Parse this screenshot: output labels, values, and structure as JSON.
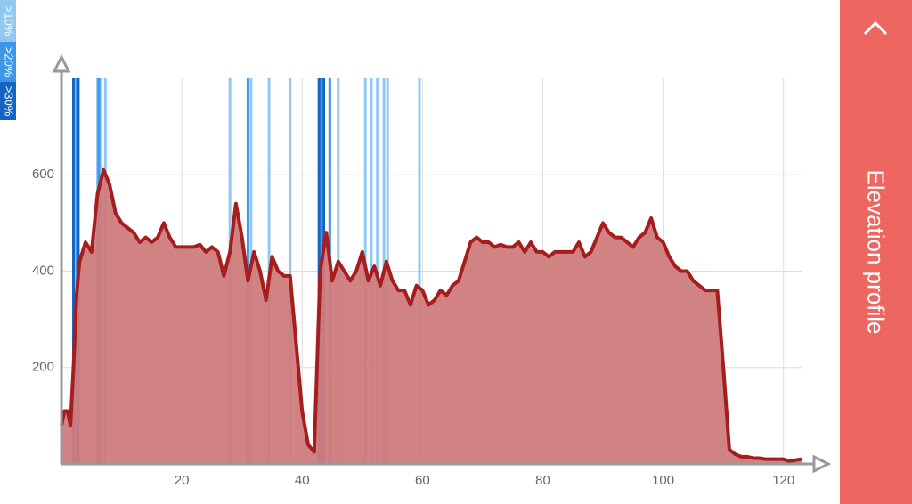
{
  "chart_data": {
    "type": "area",
    "x": [
      0,
      0.5,
      1,
      1.5,
      2,
      2.5,
      3,
      4,
      5,
      6,
      7,
      8,
      9,
      10,
      11,
      12,
      13,
      14,
      15,
      16,
      17,
      18,
      19,
      20,
      21,
      22,
      23,
      24,
      25,
      26,
      27,
      28,
      29,
      30,
      31,
      32,
      33,
      34,
      35,
      36,
      37,
      38,
      39,
      40,
      41,
      42,
      43,
      44,
      45,
      46,
      47,
      48,
      49,
      50,
      51,
      52,
      53,
      54,
      55,
      56,
      57,
      58,
      59,
      60,
      61,
      62,
      63,
      64,
      65,
      66,
      67,
      68,
      69,
      70,
      71,
      72,
      73,
      74,
      75,
      76,
      77,
      78,
      79,
      80,
      81,
      82,
      83,
      84,
      85,
      86,
      87,
      88,
      89,
      90,
      91,
      92,
      93,
      94,
      95,
      96,
      97,
      98,
      99,
      100,
      101,
      102,
      103,
      104,
      105,
      106,
      107,
      108,
      109,
      110,
      111,
      112,
      113,
      114,
      115,
      116,
      117,
      118,
      119,
      120,
      121,
      122,
      123
    ],
    "values": [
      80,
      110,
      110,
      80,
      200,
      350,
      420,
      460,
      440,
      560,
      610,
      580,
      520,
      500,
      490,
      480,
      460,
      470,
      460,
      470,
      500,
      470,
      450,
      450,
      450,
      450,
      455,
      440,
      450,
      440,
      390,
      440,
      540,
      470,
      380,
      440,
      400,
      340,
      430,
      400,
      390,
      390,
      250,
      110,
      40,
      25,
      400,
      480,
      380,
      420,
      400,
      380,
      400,
      440,
      380,
      410,
      370,
      420,
      380,
      360,
      360,
      330,
      370,
      360,
      330,
      340,
      360,
      350,
      370,
      380,
      420,
      460,
      470,
      460,
      460,
      450,
      455,
      450,
      450,
      460,
      440,
      460,
      440,
      440,
      430,
      440,
      440,
      440,
      440,
      460,
      430,
      440,
      470,
      500,
      480,
      470,
      470,
      460,
      450,
      470,
      480,
      510,
      470,
      460,
      430,
      410,
      400,
      400,
      380,
      370,
      360,
      360,
      360,
      200,
      30,
      20,
      15,
      15,
      12,
      12,
      10,
      10,
      10,
      10,
      5,
      8,
      10
    ],
    "color": "#a51d1d",
    "fill": "#cf7b7b",
    "xlim": [
      0,
      123
    ],
    "ylim": [
      0,
      800
    ],
    "xticks": [
      20,
      40,
      60,
      80,
      100,
      120
    ],
    "yticks": [
      200,
      400,
      600
    ],
    "grid": true,
    "grade_bands": [
      {
        "name": ">10%",
        "color": "#90c8f2",
        "x": [
          6,
          6.6,
          7.3,
          28,
          31.5,
          34.5,
          38,
          46,
          50.5,
          51.5,
          52.5,
          53.6,
          54.2,
          59.5
        ]
      },
      {
        "name": ">20%",
        "color": "#3d97e6",
        "x": [
          2.5,
          6.2,
          31,
          43,
          44.6
        ]
      },
      {
        "name": ">30%",
        "color": "#1565c0",
        "x": [
          2,
          2.8,
          42.8,
          43.6
        ]
      }
    ]
  },
  "sidebar": {
    "title": "Elevation profile"
  }
}
